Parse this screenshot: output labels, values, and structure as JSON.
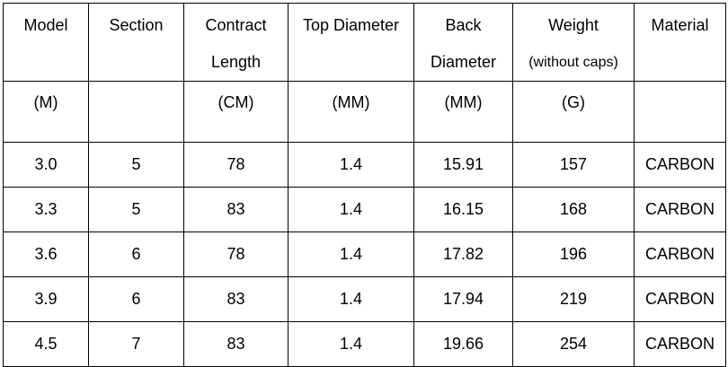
{
  "table": {
    "header": [
      [
        "Model"
      ],
      [
        "Section"
      ],
      [
        "Contract",
        "Length"
      ],
      [
        "Top Diameter"
      ],
      [
        "Back",
        "Diameter"
      ],
      [
        "Weight",
        "(without caps)"
      ],
      [
        "Material"
      ]
    ],
    "units": [
      "(M)",
      null,
      "(CM)",
      "(MM)",
      "(MM)",
      "(G)",
      null
    ],
    "rows": [
      [
        "3.0",
        "5",
        "78",
        "1.4",
        "15.91",
        "157",
        "CARBON"
      ],
      [
        "3.3",
        "5",
        "83",
        "1.4",
        "16.15",
        "168",
        "CARBON"
      ],
      [
        "3.6",
        "6",
        "78",
        "1.4",
        "17.82",
        "196",
        "CARBON"
      ],
      [
        "3.9",
        "6",
        "83",
        "1.4",
        "17.94",
        "219",
        "CARBON"
      ],
      [
        "4.5",
        "7",
        "83",
        "1.4",
        "19.66",
        "254",
        "CARBON"
      ]
    ]
  }
}
